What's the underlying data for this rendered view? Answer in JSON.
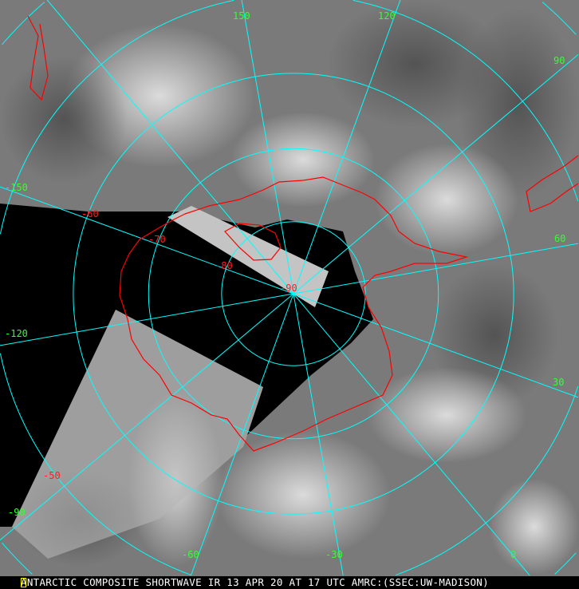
{
  "caption": "ANTARCTIC COMPOSITE SHORTWAVE IR 13 APR 20 AT 17 UTC AMRC:(SSEC:UW-MADISON)",
  "colors": {
    "grid": "#00ffff",
    "coastline": "#ff0000",
    "longitude_label": "#33ff33",
    "latitude_label": "#ff2020",
    "no_data": "#000000"
  },
  "longitude_labels": [
    "150",
    "120",
    "90",
    "60",
    "30",
    "0",
    "-30",
    "-60",
    "-90",
    "-120",
    "-150"
  ],
  "latitude_labels": [
    "-50",
    "-60",
    "-70",
    "-80",
    "-90"
  ]
}
